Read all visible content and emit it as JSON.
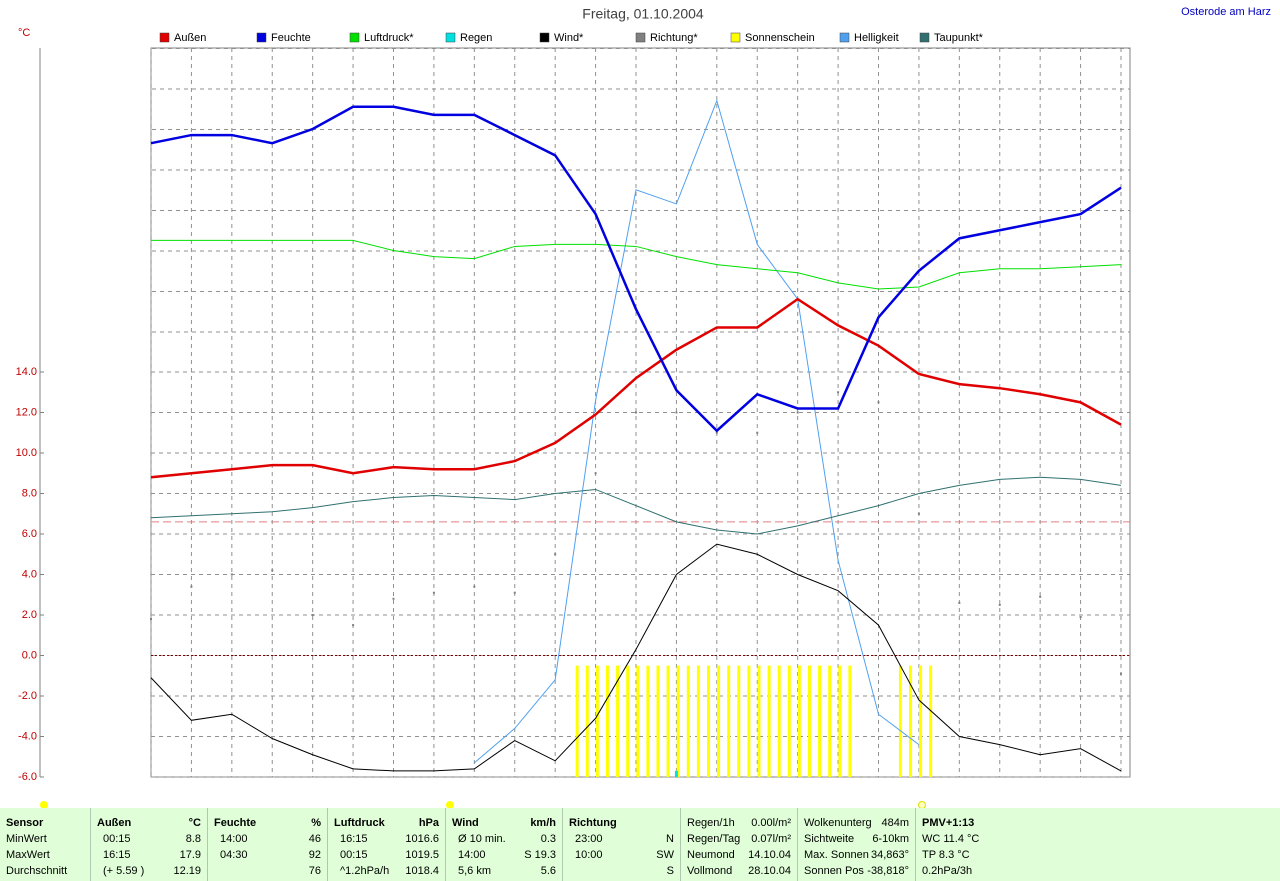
{
  "chart_data": {
    "type": "line",
    "title": "Freitag, 01.10.2004",
    "location": "Osterode am Harz",
    "y_unit": "°C",
    "x": [
      0,
      1,
      2,
      3,
      4,
      5,
      6,
      7,
      8,
      9,
      10,
      11,
      12,
      13,
      14,
      15,
      16,
      17,
      18,
      19,
      20,
      21,
      22,
      23,
      24
    ],
    "xlim": [
      0,
      24
    ],
    "ylim": [
      -6,
      30
    ],
    "yticks": [
      {
        "value": -6,
        "label": "-6.0"
      },
      {
        "value": -4,
        "label": "-4.0"
      },
      {
        "value": -2,
        "label": "-2.0"
      },
      {
        "value": 0,
        "label": "0.0"
      },
      {
        "value": 2,
        "label": "2.0"
      },
      {
        "value": 4,
        "label": "4.0"
      },
      {
        "value": 6,
        "label": "6.0"
      },
      {
        "value": 8,
        "label": "8.0"
      },
      {
        "value": 10,
        "label": "10.0"
      },
      {
        "value": 12,
        "label": "12.0"
      },
      {
        "value": 14,
        "label": "14.0"
      }
    ],
    "grid": true,
    "reference_lines": [
      {
        "value": 6.6,
        "color": "#e08080"
      },
      {
        "value": 0,
        "color": "#800000"
      }
    ],
    "series": [
      {
        "name": "Außen",
        "color": "#e00000",
        "style": "line",
        "width": 2.5,
        "values": [
          8.8,
          9.0,
          9.2,
          9.4,
          9.4,
          9.0,
          9.3,
          9.2,
          9.2,
          9.6,
          10.5,
          11.9,
          13.7,
          15.1,
          16.2,
          16.2,
          17.6,
          16.3,
          15.3,
          13.9,
          13.4,
          13.2,
          12.9,
          12.5,
          11.4
        ]
      },
      {
        "name": "Feuchte",
        "color": "#0000e0",
        "style": "line",
        "width": 2.5,
        "values": [
          25.3,
          25.7,
          25.7,
          25.3,
          26.0,
          27.1,
          27.1,
          26.7,
          26.7,
          25.7,
          24.7,
          21.8,
          17.1,
          13.1,
          11.1,
          12.9,
          12.2,
          12.2,
          16.7,
          19.0,
          20.6,
          21.0,
          21.4,
          21.8,
          23.1
        ]
      },
      {
        "name": "Luftdruck*",
        "color": "#00e000",
        "style": "line",
        "width": 1,
        "values": [
          20.5,
          20.5,
          20.5,
          20.5,
          20.5,
          20.5,
          20.0,
          19.7,
          19.6,
          20.2,
          20.3,
          20.3,
          20.2,
          19.7,
          19.3,
          19.1,
          18.9,
          18.4,
          18.1,
          18.2,
          18.9,
          19.1,
          19.1,
          19.2,
          19.3
        ]
      },
      {
        "name": "Regen",
        "color": "#00e0e0",
        "style": "bars",
        "values": [
          null,
          null,
          null,
          null,
          null,
          null,
          null,
          null,
          null,
          null,
          null,
          null,
          null,
          -5.7,
          null,
          null,
          null,
          null,
          null,
          null,
          null,
          null,
          null,
          null,
          null
        ]
      },
      {
        "name": "Wind*",
        "color": "#000000",
        "style": "line",
        "width": 1,
        "values": [
          -1.1,
          -3.2,
          -2.9,
          -4.1,
          -4.9,
          -5.6,
          -5.7,
          -5.7,
          -5.6,
          -4.2,
          -5.2,
          -3.1,
          0.3,
          4.0,
          5.5,
          5.0,
          4.0,
          3.2,
          1.5,
          -2.2,
          -4.0,
          -4.4,
          -4.9,
          -4.6,
          -5.7
        ]
      },
      {
        "name": "Richtung*",
        "color": "#808080",
        "style": "dots",
        "values": [
          1.8,
          3.4,
          4.0,
          4.2,
          2.0,
          1.5,
          2.8,
          3.1,
          3.4,
          3.1,
          5.0,
          9.0,
          12.0,
          12.0,
          11.0,
          11.0,
          12.0,
          13.0,
          12.5,
          7.0,
          2.6,
          2.5,
          2.9,
          1.9,
          -0.9
        ]
      },
      {
        "name": "Sonnenschein",
        "color": "#ffff00",
        "style": "bars",
        "values": [
          null,
          null,
          null,
          null,
          null,
          null,
          null,
          null,
          null,
          null,
          null,
          -0.5,
          -0.5,
          -0.5,
          -0.5,
          -0.5,
          -0.5,
          -0.5,
          null,
          -0.5,
          null,
          null,
          null,
          null,
          null
        ]
      },
      {
        "name": "Helligkeit",
        "color": "#50a0f0",
        "style": "line",
        "width": 1,
        "values": [
          null,
          null,
          null,
          null,
          null,
          null,
          null,
          null,
          -5.3,
          -3.6,
          -1.2,
          12.6,
          23.0,
          22.3,
          27.4,
          20.3,
          17.6,
          4.7,
          -2.9,
          -4.4,
          null,
          null,
          null,
          null,
          null
        ]
      },
      {
        "name": "Taupunkt*",
        "color": "#307070",
        "style": "line",
        "width": 1,
        "values": [
          6.8,
          6.9,
          7.0,
          7.1,
          7.3,
          7.6,
          7.8,
          7.9,
          7.8,
          7.7,
          8.0,
          8.2,
          7.4,
          6.6,
          6.2,
          6.0,
          6.4,
          6.9,
          7.4,
          8.0,
          8.4,
          8.7,
          8.8,
          8.7,
          8.4
        ]
      }
    ]
  },
  "table": {
    "columns": [
      {
        "lines": [
          [
            "Sensor"
          ],
          [
            "MinWert"
          ],
          [
            "MaxWert"
          ],
          [
            "Durchschnitt"
          ]
        ]
      },
      {
        "lines": [
          [
            "Außen",
            "°C"
          ],
          [
            "00:15",
            "8.8"
          ],
          [
            "16:15",
            "17.9"
          ],
          [
            "(+ 5.59 )",
            "12.19"
          ]
        ]
      },
      {
        "lines": [
          [
            "Feuchte",
            "%"
          ],
          [
            "14:00",
            "46"
          ],
          [
            "04:30",
            "92"
          ],
          [
            null,
            "76"
          ]
        ]
      },
      {
        "lines": [
          [
            "Luftdruck",
            "hPa"
          ],
          [
            "16:15",
            "1016.6"
          ],
          [
            "00:15",
            "1019.5"
          ],
          [
            "^1.2hPa/h",
            "1018.4"
          ]
        ]
      },
      {
        "lines": [
          [
            "Wind",
            "km/h"
          ],
          [
            "Ø 10 min.",
            "0.3"
          ],
          [
            "14:00",
            "S 19.3"
          ],
          [
            "5,6 km",
            "5.6"
          ]
        ]
      },
      {
        "lines": [
          [
            "Richtung"
          ],
          [
            "23:00",
            "N"
          ],
          [
            "10:00",
            "SW"
          ],
          [
            null,
            "S"
          ]
        ]
      },
      {
        "lines": [
          [
            "Regen/1h",
            "0.00l/m²"
          ],
          [
            "Regen/Tag",
            "0.07l/m²"
          ],
          [
            "Neumond",
            "14.10.04"
          ],
          [
            "Vollmond",
            "28.10.04"
          ]
        ]
      },
      {
        "lines": [
          [
            "Wolkenunterg",
            "484m"
          ],
          [
            "Sichtweite",
            "6-10km"
          ],
          [
            "Max. Sonnen",
            "34,863°"
          ],
          [
            "Sonnen Pos",
            "-38,818°"
          ]
        ]
      },
      {
        "lines": [
          [
            "PMV+1:13"
          ],
          [
            "WC 11.4 °C"
          ],
          [
            "TP 8.3 °C"
          ],
          [
            "0.2hPa/3h"
          ]
        ]
      }
    ]
  }
}
